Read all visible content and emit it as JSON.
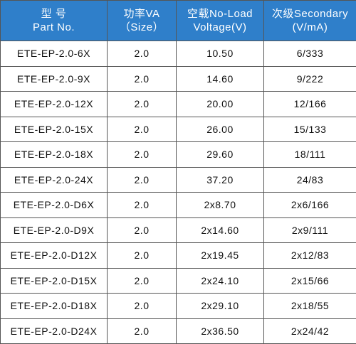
{
  "table": {
    "header": [
      [
        "型 号",
        "Part No."
      ],
      [
        "功率VA",
        "（Size）"
      ],
      [
        "空载No-Load",
        "Voltage(V)"
      ],
      [
        "次级Secondary",
        "(V/mA)"
      ]
    ],
    "rows": [
      [
        "ETE-EP-2.0-6X",
        "2.0",
        "10.50",
        "6/333"
      ],
      [
        "ETE-EP-2.0-9X",
        "2.0",
        "14.60",
        "9/222"
      ],
      [
        "ETE-EP-2.0-12X",
        "2.0",
        "20.00",
        "12/166"
      ],
      [
        "ETE-EP-2.0-15X",
        "2.0",
        "26.00",
        "15/133"
      ],
      [
        "ETE-EP-2.0-18X",
        "2.0",
        "29.60",
        "18/111"
      ],
      [
        "ETE-EP-2.0-24X",
        "2.0",
        "37.20",
        "24/83"
      ],
      [
        "ETE-EP-2.0-D6X",
        "2.0",
        "2x8.70",
        "2x6/166"
      ],
      [
        "ETE-EP-2.0-D9X",
        "2.0",
        "2x14.60",
        "2x9/111"
      ],
      [
        "ETE-EP-2.0-D12X",
        "2.0",
        "2x19.45",
        "2x12/83"
      ],
      [
        "ETE-EP-2.0-D15X",
        "2.0",
        "2x24.10",
        "2x15/66"
      ],
      [
        "ETE-EP-2.0-D18X",
        "2.0",
        "2x29.10",
        "2x18/55"
      ],
      [
        "ETE-EP-2.0-D24X",
        "2.0",
        "2x36.50",
        "2x24/42"
      ]
    ]
  }
}
